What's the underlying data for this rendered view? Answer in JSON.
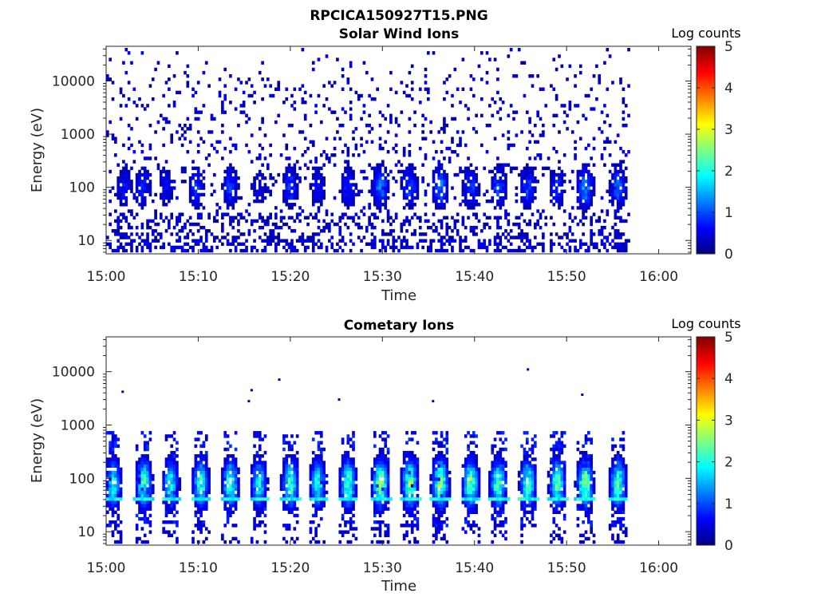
{
  "figure": {
    "title": "RPCICA150927T15.PNG"
  },
  "colormap": {
    "name": "jet",
    "stops": [
      "#00007f",
      "#0000ff",
      "#007fff",
      "#00ffff",
      "#7fff7f",
      "#ffff00",
      "#ff7f00",
      "#ff0000",
      "#7f0000"
    ]
  },
  "chart_data": [
    {
      "type": "heatmap",
      "title": "Solar Wind Ions",
      "xlabel": "Time",
      "ylabel": "Energy (eV)",
      "x_tick_labels": [
        "15:00",
        "15:10",
        "15:20",
        "15:30",
        "15:40",
        "15:50",
        "16:00"
      ],
      "x_tick_minutes": [
        0,
        10,
        20,
        30,
        40,
        50,
        60
      ],
      "xlim_minutes": [
        0,
        63.5
      ],
      "data_end_minute": 57,
      "y_scale": "log",
      "y_tick_labels": [
        "10",
        "100",
        "1000",
        "10000"
      ],
      "y_tick_values": [
        10,
        100,
        1000,
        10000
      ],
      "ylim": [
        5.6,
        45000
      ],
      "colorbar": {
        "label": "Log counts",
        "ticks": [
          "0",
          "1",
          "2",
          "3",
          "4",
          "5"
        ],
        "range": [
          0,
          5
        ]
      },
      "pattern": {
        "description_values": "sparse scatter of low counts (log 0–1) across all energies; periodic enhancements at 60–300 eV",
        "burst_minutes": [
          2.0,
          4.0,
          6.5,
          9.8,
          13.5,
          16.6,
          20.0,
          23.0,
          26.3,
          29.8,
          33.0,
          36.3,
          39.6,
          42.6,
          45.8,
          49.0,
          52.0,
          55.6
        ],
        "burst_peak_log_counts": [
          0.8,
          0.9,
          0.7,
          1.0,
          1.0,
          0.6,
          1.1,
          0.8,
          0.9,
          1.4,
          1.2,
          1.4,
          1.1,
          1.2,
          1.1,
          0.9,
          1.6,
          1.3
        ],
        "burst_center_energy_ev": 100
      }
    },
    {
      "type": "heatmap",
      "title": "Cometary Ions",
      "xlabel": "Time",
      "ylabel": "Energy (eV)",
      "x_tick_labels": [
        "15:00",
        "15:10",
        "15:20",
        "15:30",
        "15:40",
        "15:50",
        "16:00"
      ],
      "x_tick_minutes": [
        0,
        10,
        20,
        30,
        40,
        50,
        60
      ],
      "xlim_minutes": [
        0,
        63.5
      ],
      "data_end_minute": 57,
      "y_scale": "log",
      "y_tick_labels": [
        "10",
        "100",
        "1000",
        "10000"
      ],
      "y_tick_values": [
        10,
        100,
        1000,
        10000
      ],
      "ylim": [
        5.6,
        45000
      ],
      "colorbar": {
        "label": "Log counts",
        "ticks": [
          "0",
          "1",
          "2",
          "3",
          "4",
          "5"
        ],
        "range": [
          0,
          5
        ]
      },
      "pattern": {
        "description_values": "periodic ion bursts spanning ~20–600 eV, strongest near 40–150 eV",
        "burst_minutes": [
          0.8,
          4.1,
          7.0,
          10.3,
          13.5,
          16.6,
          20.0,
          23.0,
          26.3,
          29.8,
          33.0,
          36.3,
          39.6,
          42.6,
          45.8,
          49.0,
          52.0,
          55.6
        ],
        "burst_peak_log_counts": [
          2.0,
          2.3,
          2.1,
          2.2,
          2.3,
          2.0,
          2.3,
          2.1,
          2.4,
          2.8,
          2.6,
          2.8,
          2.6,
          2.5,
          2.4,
          2.4,
          2.7,
          2.4
        ],
        "burst_center_energy_ev": 80,
        "band_energy_ev": 42,
        "outlier_points": [
          {
            "minute": 1.8,
            "energy_ev": 4200,
            "log_counts": 0.2
          },
          {
            "minute": 15.5,
            "energy_ev": 2800,
            "log_counts": 0.2
          },
          {
            "minute": 15.8,
            "energy_ev": 4500,
            "log_counts": 0.2
          },
          {
            "minute": 18.8,
            "energy_ev": 7100,
            "log_counts": 0.2
          },
          {
            "minute": 25.3,
            "energy_ev": 3000,
            "log_counts": 0.2
          },
          {
            "minute": 35.5,
            "energy_ev": 2800,
            "log_counts": 0.2
          },
          {
            "minute": 45.8,
            "energy_ev": 11000,
            "log_counts": 0.2
          },
          {
            "minute": 51.7,
            "energy_ev": 3700,
            "log_counts": 0.2
          }
        ]
      }
    }
  ]
}
